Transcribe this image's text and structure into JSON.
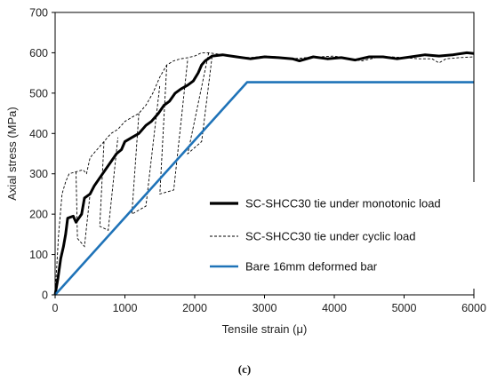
{
  "chart_data": {
    "type": "line",
    "xlabel": "Tensile strain (μ)",
    "ylabel": "Axial stress (MPa)",
    "xlim": [
      0,
      6000
    ],
    "ylim": [
      0,
      700
    ],
    "x_ticks": [
      0,
      1000,
      2000,
      3000,
      4000,
      5000,
      6000
    ],
    "y_ticks": [
      0,
      100,
      200,
      300,
      400,
      500,
      600,
      700
    ],
    "grid": false,
    "legend_position": "bottom-right",
    "caption": "(c)",
    "series": [
      {
        "name": "SC-SHCC30 tie under monotonic load",
        "style": "solid-thick",
        "color": "#000000",
        "points": [
          [
            0,
            0
          ],
          [
            40,
            40
          ],
          [
            80,
            90
          ],
          [
            120,
            120
          ],
          [
            150,
            150
          ],
          [
            180,
            190
          ],
          [
            260,
            195
          ],
          [
            300,
            180
          ],
          [
            380,
            200
          ],
          [
            420,
            240
          ],
          [
            500,
            250
          ],
          [
            560,
            270
          ],
          [
            640,
            290
          ],
          [
            720,
            310
          ],
          [
            800,
            330
          ],
          [
            880,
            350
          ],
          [
            950,
            360
          ],
          [
            1000,
            380
          ],
          [
            1100,
            390
          ],
          [
            1200,
            400
          ],
          [
            1300,
            420
          ],
          [
            1380,
            430
          ],
          [
            1480,
            450
          ],
          [
            1560,
            470
          ],
          [
            1640,
            480
          ],
          [
            1720,
            500
          ],
          [
            1800,
            510
          ],
          [
            1900,
            520
          ],
          [
            1980,
            530
          ],
          [
            2050,
            550
          ],
          [
            2100,
            570
          ],
          [
            2150,
            580
          ],
          [
            2250,
            592
          ],
          [
            2400,
            595
          ],
          [
            2600,
            590
          ],
          [
            2800,
            585
          ],
          [
            3000,
            590
          ],
          [
            3200,
            588
          ],
          [
            3400,
            585
          ],
          [
            3500,
            580
          ],
          [
            3700,
            590
          ],
          [
            3900,
            585
          ],
          [
            4100,
            588
          ],
          [
            4300,
            582
          ],
          [
            4500,
            590
          ],
          [
            4700,
            590
          ],
          [
            4900,
            585
          ],
          [
            5100,
            590
          ],
          [
            5300,
            595
          ],
          [
            5500,
            592
          ],
          [
            5700,
            595
          ],
          [
            5900,
            600
          ],
          [
            6000,
            598
          ]
        ]
      },
      {
        "name": "SC-SHCC30 tie under cyclic load",
        "style": "dashed",
        "color": "#000000",
        "points": [
          [
            0,
            0
          ],
          [
            50,
            150
          ],
          [
            100,
            250
          ],
          [
            150,
            280
          ],
          [
            200,
            300
          ],
          [
            300,
            305
          ],
          [
            400,
            310
          ],
          [
            450,
            300
          ],
          [
            500,
            340
          ],
          [
            600,
            360
          ],
          [
            700,
            380
          ],
          [
            800,
            400
          ],
          [
            900,
            410
          ],
          [
            1000,
            430
          ],
          [
            1100,
            440
          ],
          [
            1200,
            450
          ],
          [
            1300,
            470
          ],
          [
            1400,
            500
          ],
          [
            1500,
            540
          ],
          [
            1600,
            570
          ],
          [
            1700,
            580
          ],
          [
            1800,
            585
          ],
          [
            1900,
            588
          ],
          [
            2000,
            592
          ],
          [
            2100,
            600
          ],
          [
            2200,
            600
          ],
          [
            2400,
            595
          ],
          [
            2600,
            590
          ],
          [
            2800,
            588
          ],
          [
            3000,
            592
          ],
          [
            3200,
            590
          ],
          [
            3400,
            585
          ],
          [
            3600,
            588
          ],
          [
            3800,
            590
          ],
          [
            4000,
            592
          ],
          [
            4200,
            585
          ],
          [
            4400,
            580
          ],
          [
            4600,
            588
          ],
          [
            4800,
            590
          ],
          [
            5000,
            588
          ],
          [
            5200,
            585
          ],
          [
            5400,
            585
          ],
          [
            5500,
            575
          ],
          [
            5600,
            585
          ],
          [
            5800,
            588
          ],
          [
            6000,
            590
          ]
        ]
      },
      {
        "name": "Bare 16mm deformed bar",
        "style": "solid",
        "color": "#1f73b8",
        "points": [
          [
            0,
            0
          ],
          [
            2750,
            527
          ],
          [
            6000,
            527
          ]
        ]
      }
    ],
    "cyclic_unload_reload_loops": [
      [
        [
          300,
          305
        ],
        [
          320,
          140
        ],
        [
          420,
          120
        ],
        [
          500,
          250
        ]
      ],
      [
        [
          700,
          380
        ],
        [
          640,
          170
        ],
        [
          760,
          160
        ],
        [
          900,
          390
        ]
      ],
      [
        [
          1200,
          450
        ],
        [
          1100,
          200
        ],
        [
          1300,
          220
        ],
        [
          1500,
          520
        ]
      ],
      [
        [
          1600,
          570
        ],
        [
          1500,
          250
        ],
        [
          1700,
          260
        ],
        [
          1900,
          585
        ]
      ],
      [
        [
          2200,
          600
        ],
        [
          1900,
          350
        ],
        [
          2100,
          380
        ],
        [
          2250,
          592
        ]
      ]
    ]
  }
}
